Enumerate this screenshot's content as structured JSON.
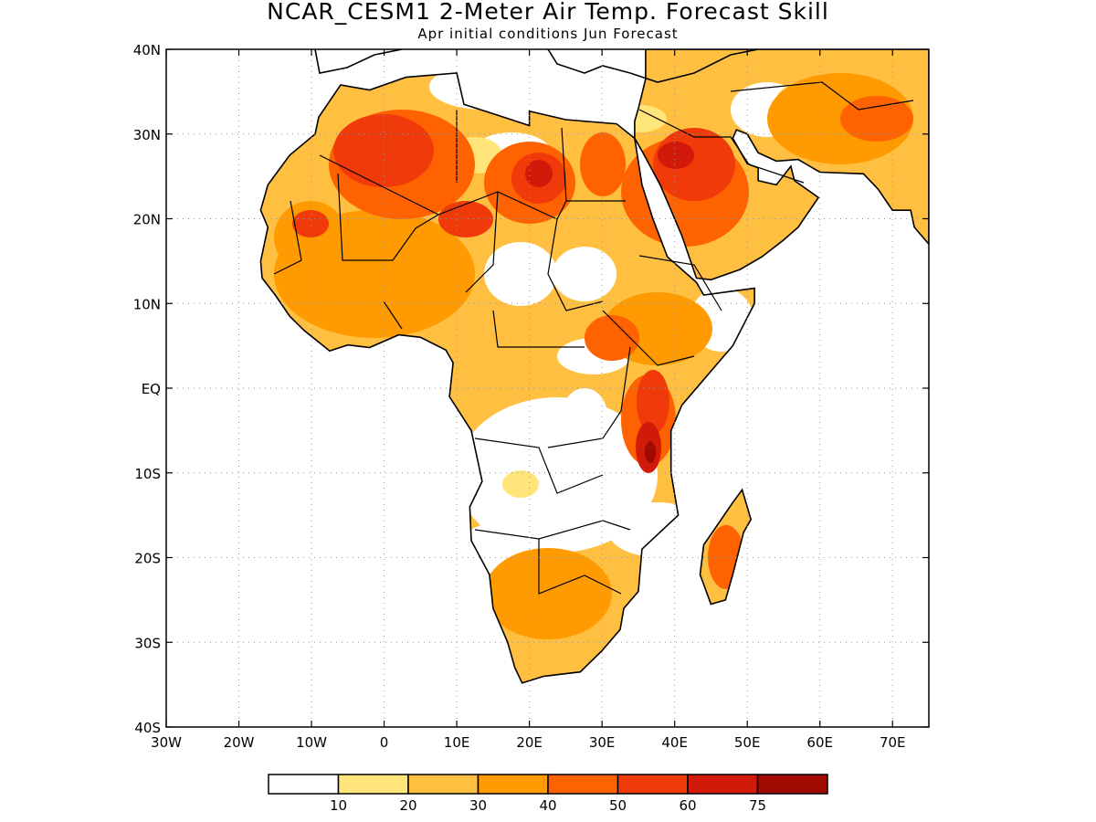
{
  "header": {
    "title": "NCAR_CESM1 2-Meter Air Temp. Forecast Skill",
    "subtitle": "Apr initial conditions  Jun Forecast"
  },
  "map": {
    "lon_range": [
      -30,
      75
    ],
    "lat_range": [
      -40,
      40
    ],
    "lon_ticks": [
      {
        "value": -30,
        "label": "30W"
      },
      {
        "value": -20,
        "label": "20W"
      },
      {
        "value": -10,
        "label": "10W"
      },
      {
        "value": 0,
        "label": "0"
      },
      {
        "value": 10,
        "label": "10E"
      },
      {
        "value": 20,
        "label": "20E"
      },
      {
        "value": 30,
        "label": "30E"
      },
      {
        "value": 40,
        "label": "40E"
      },
      {
        "value": 50,
        "label": "50E"
      },
      {
        "value": 60,
        "label": "60E"
      },
      {
        "value": 70,
        "label": "70E"
      }
    ],
    "lat_ticks": [
      {
        "value": 40,
        "label": "40N"
      },
      {
        "value": 30,
        "label": "30N"
      },
      {
        "value": 20,
        "label": "20N"
      },
      {
        "value": 10,
        "label": "10N"
      },
      {
        "value": 0,
        "label": "EQ"
      },
      {
        "value": -10,
        "label": "10S"
      },
      {
        "value": -20,
        "label": "20S"
      },
      {
        "value": -30,
        "label": "30S"
      },
      {
        "value": -40,
        "label": "40S"
      }
    ],
    "gridlines": "dotted"
  },
  "colorbar": {
    "colors": [
      "#ffffff",
      "#ffe57a",
      "#ffbf40",
      "#ff9a00",
      "#ff6200",
      "#f03a0a",
      "#d21a0a",
      "#a00a00"
    ],
    "labels": [
      "10",
      "20",
      "30",
      "40",
      "50",
      "60",
      "75"
    ]
  }
}
